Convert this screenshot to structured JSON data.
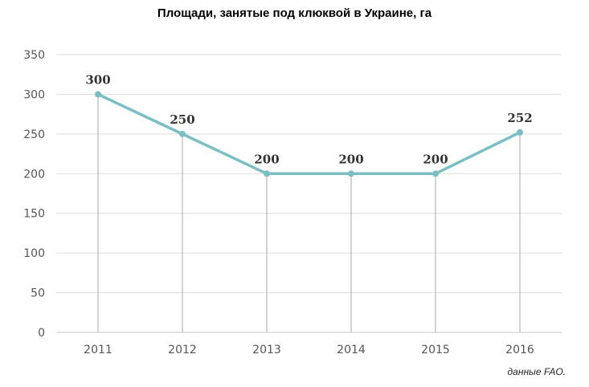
{
  "chart_data": {
    "type": "line",
    "title": "Площади, занятые под клюквой в Украине, га",
    "categories": [
      "2011",
      "2012",
      "2013",
      "2014",
      "2015",
      "2016"
    ],
    "series": [
      {
        "values": [
          300,
          250,
          200,
          200,
          200,
          252
        ]
      }
    ],
    "data_labels": [
      "300",
      "250",
      "200",
      "200",
      "200",
      "252"
    ],
    "yticks": [
      "0",
      "50",
      "100",
      "150",
      "200",
      "250",
      "300",
      "350"
    ],
    "ylim": [
      0,
      350
    ],
    "xlabel": "",
    "ylabel": "",
    "grid": true,
    "legend": "none",
    "line_color": "#7bbfc3",
    "marker_color": "#7bbfc3",
    "drop_line_color": "#aaaaaa",
    "grid_color": "#dddddd"
  },
  "source_note": "данные FAO."
}
